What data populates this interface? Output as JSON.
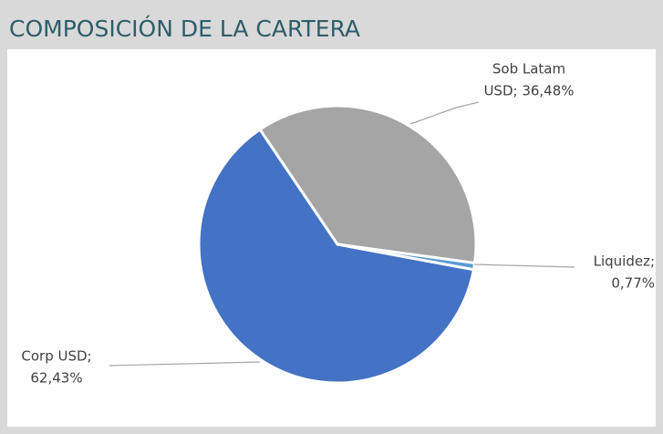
{
  "chart_data": {
    "type": "pie",
    "title": "COMPOSICIÓN DE LA CARTERA",
    "values": [
      36.48,
      0.77,
      62.43
    ],
    "value_labels": [
      [
        "Sob Latam",
        "USD; 36,48%"
      ],
      [
        "Liquidez;",
        "0,77%"
      ],
      [
        "Corp USD;",
        "62,43%"
      ]
    ],
    "colors": [
      "#a5a5a5",
      "#5b9bd5",
      "#4472c4"
    ]
  }
}
